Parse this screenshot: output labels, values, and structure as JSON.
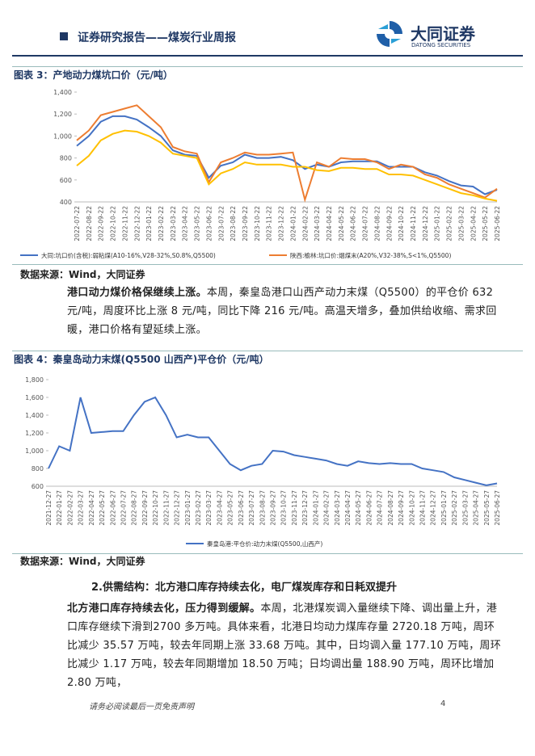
{
  "header": {
    "title": "证券研究报告——煤炭行业周报",
    "logo_name": "大同证券",
    "logo_en": "DATONG SECURITIES"
  },
  "figure3": {
    "chart_data": {
      "type": "line",
      "title": "图表 3：产地动力煤坑口价（元/吨）",
      "categories": [
        "2022-07-22",
        "2022-08-22",
        "2022-09-22",
        "2022-10-22",
        "2022-11-22",
        "2022-12-22",
        "2023-01-22",
        "2023-02-22",
        "2023-03-22",
        "2023-04-22",
        "2023-05-22",
        "2023-06-22",
        "2023-07-22",
        "2023-08-22",
        "2023-09-22",
        "2023-10-22",
        "2023-11-22",
        "2023-12-22",
        "2024-01-22",
        "2024-02-22",
        "2024-03-22",
        "2024-04-22",
        "2024-05-22",
        "2024-06-22",
        "2024-07-22",
        "2024-08-22",
        "2024-09-22",
        "2024-10-22",
        "2024-11-22",
        "2024-12-22",
        "2025-01-22",
        "2025-02-22",
        "2025-03-22",
        "2025-04-22",
        "2025-05-22",
        "2025-06-22"
      ],
      "series": [
        {
          "name": "大同:坑口价(含税):弱粘煤(A10-16%,V28-32%,S0.8%,Q5500)",
          "color": "#4472c4",
          "values": [
            910,
            1000,
            1130,
            1180,
            1180,
            1150,
            1080,
            1000,
            870,
            830,
            820,
            620,
            730,
            760,
            830,
            800,
            800,
            810,
            780,
            700,
            740,
            720,
            760,
            770,
            770,
            770,
            720,
            720,
            720,
            670,
            640,
            590,
            550,
            540,
            470,
            510
          ]
        },
        {
          "name": "陕西:榆林:坑口价:烟煤末(A20%,V32-38%,S<1%,Q5500)",
          "color": "#ed7d31",
          "values": [
            960,
            1050,
            1190,
            1220,
            1250,
            1280,
            1180,
            1080,
            900,
            860,
            840,
            580,
            760,
            800,
            850,
            830,
            830,
            840,
            850,
            420,
            760,
            720,
            800,
            790,
            790,
            760,
            700,
            740,
            720,
            650,
            620,
            560,
            520,
            480,
            440,
            520
          ]
        },
        {
          "color": "#ffc000",
          "values": [
            730,
            820,
            960,
            1020,
            1050,
            1040,
            1000,
            940,
            840,
            820,
            800,
            560,
            660,
            700,
            760,
            740,
            740,
            740,
            720,
            720,
            690,
            680,
            710,
            710,
            700,
            700,
            650,
            650,
            640,
            600,
            560,
            520,
            480,
            460,
            430,
            410
          ]
        }
      ],
      "ylim": [
        400,
        1400
      ],
      "yticks": [
        400,
        600,
        800,
        {
          "value": 1000,
          "label": "1,000"
        },
        {
          "value": 1200,
          "label": "1,200"
        },
        {
          "value": 1400,
          "label": "1,400"
        }
      ]
    },
    "source": "数据来源：Wind，大同证券"
  },
  "paragraph1": {
    "lead": "港口动力煤价格保继续上涨。",
    "text": "本周，秦皇岛港口山西产动力末煤（Q5500）的平仓价 632 元/吨，周度环比上涨 8 元/吨，同比下降 216 元/吨。高温天增多，叠加供给收缩、需求回暖，港口价格有望延续上涨。"
  },
  "figure4": {
    "chart_data": {
      "type": "line",
      "title": "图表 4：秦皇岛动力末煤(Q5500 山西产)平仓价（元/吨）",
      "categories": [
        "2021-12-27",
        "2022-01-27",
        "2022-02-27",
        "2022-03-27",
        "2022-04-27",
        "2022-05-27",
        "2022-06-27",
        "2022-07-27",
        "2022-08-27",
        "2022-09-27",
        "2022-10-27",
        "2022-11-27",
        "2022-12-27",
        "2023-01-27",
        "2023-02-27",
        "2023-03-27",
        "2023-04-27",
        "2023-05-27",
        "2023-06-27",
        "2023-07-27",
        "2023-08-27",
        "2023-09-27",
        "2023-10-27",
        "2023-11-27",
        "2023-12-27",
        "2024-01-27",
        "2024-02-27",
        "2024-03-27",
        "2024-04-27",
        "2024-05-27",
        "2024-06-27",
        "2024-07-27",
        "2024-08-27",
        "2024-09-27",
        "2024-10-27",
        "2024-11-27",
        "2024-12-27",
        "2025-01-27",
        "2025-02-27",
        "2025-03-27",
        "2025-04-27",
        "2025-05-27",
        "2025-06-27"
      ],
      "series": [
        {
          "name": "秦皇岛港:平仓价:动力末煤(Q5500,山西产)",
          "color": "#4472c4",
          "values": [
            800,
            1050,
            1000,
            1600,
            1200,
            1210,
            1220,
            1220,
            1400,
            1550,
            1600,
            1400,
            1150,
            1180,
            1150,
            1150,
            1000,
            850,
            780,
            830,
            850,
            1000,
            990,
            950,
            930,
            910,
            890,
            850,
            830,
            880,
            860,
            850,
            860,
            850,
            850,
            800,
            780,
            760,
            700,
            670,
            640,
            610,
            632
          ]
        }
      ],
      "ylim": [
        600,
        1800
      ],
      "yticks": [
        600,
        800,
        {
          "value": 1000,
          "label": "1,000"
        },
        {
          "value": 1200,
          "label": "1,200"
        },
        {
          "value": 1400,
          "label": "1,400"
        },
        {
          "value": 1600,
          "label": "1,600"
        },
        {
          "value": 1800,
          "label": "1,800"
        }
      ]
    },
    "source": "数据来源：Wind，大同证券"
  },
  "section": {
    "heading": "2.供需结构：北方港口库存持续去化，电厂煤炭库存和日耗双提升"
  },
  "paragraph2": {
    "lead": "北方港口库存持续去化，压力得到缓解。",
    "text": "本周，北港煤炭调入量继续下降、调出量上升，港口库存继续下滑到2700 多万吨。具体来看，北港日均动力煤库存量 2720.18 万吨，周环比减少 35.57 万吨，较去年同期上涨 33.68 万吨。其中，日均调入量 177.10 万吨，周环比减少 1.17 万吨，较去年同期增加 18.50 万吨；日均调出量 188.90 万吨，周环比增加 2.80 万吨，"
  },
  "footer": {
    "disclaimer": "请务必阅读最后一页免责声明",
    "page": "4"
  }
}
